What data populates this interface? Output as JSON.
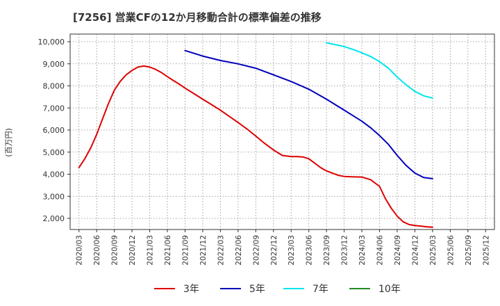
{
  "chart_data": {
    "type": "line",
    "title": "[7256]  営業CFの12か月移動合計の標準偏差の推移",
    "ylabel": "(百万円)",
    "xlabel": "",
    "ylim": [
      1500,
      10000
    ],
    "yticks": [
      "2,000",
      "3,000",
      "4,000",
      "5,000",
      "6,000",
      "7,000",
      "8,000",
      "9,000",
      "10,000"
    ],
    "ytick_values": [
      2000,
      3000,
      4000,
      5000,
      6000,
      7000,
      8000,
      9000,
      10000
    ],
    "categories": [
      "2020/03",
      "2020/06",
      "2020/09",
      "2020/12",
      "2021/03",
      "2021/06",
      "2021/09",
      "2021/12",
      "2022/03",
      "2022/06",
      "2022/09",
      "2022/12",
      "2023/03",
      "2023/06",
      "2023/09",
      "2023/12",
      "2024/03",
      "2024/06",
      "2024/09",
      "2024/12",
      "2025/03",
      "2025/06",
      "2025/09",
      "2025/12"
    ],
    "grid": true,
    "legend_position": "bottom",
    "series": [
      {
        "name": "3年",
        "color": "#dd0000",
        "x": [
          0,
          0.33,
          0.67,
          1,
          1.33,
          1.67,
          2,
          2.33,
          2.67,
          3,
          3.33,
          3.67,
          4,
          4.33,
          4.67,
          5,
          5.33,
          5.67,
          6,
          6.5,
          7,
          7.5,
          8,
          8.5,
          9,
          9.5,
          10,
          10.5,
          11,
          11.5,
          12,
          12.33,
          12.67,
          13,
          13.33,
          13.67,
          14,
          14.33,
          14.67,
          15,
          15.5,
          16,
          16.5,
          17,
          17.33,
          17.67,
          18,
          18.33,
          18.67,
          19,
          19.33,
          19.67,
          20
        ],
        "values": [
          4300,
          4700,
          5200,
          5800,
          6500,
          7200,
          7800,
          8200,
          8500,
          8700,
          8850,
          8900,
          8850,
          8750,
          8600,
          8420,
          8250,
          8080,
          7900,
          7650,
          7400,
          7150,
          6900,
          6620,
          6340,
          6050,
          5730,
          5400,
          5100,
          4850,
          4800,
          4800,
          4780,
          4700,
          4500,
          4300,
          4150,
          4050,
          3950,
          3900,
          3880,
          3870,
          3750,
          3450,
          2900,
          2450,
          2100,
          1850,
          1720,
          1680,
          1650,
          1620,
          1600
        ]
      },
      {
        "name": "5年",
        "color": "#0000bb",
        "x": [
          6,
          7,
          8,
          9,
          10,
          11,
          12,
          13,
          14,
          15,
          16,
          16.5,
          17,
          17.5,
          18,
          18.5,
          19,
          19.5,
          20
        ],
        "values": [
          9600,
          9350,
          9150,
          9000,
          8800,
          8500,
          8200,
          7850,
          7400,
          6900,
          6400,
          6100,
          5750,
          5350,
          4850,
          4400,
          4050,
          3850,
          3800
        ]
      },
      {
        "name": "7年",
        "color": "#00e5ee",
        "x": [
          14,
          14.5,
          15,
          15.5,
          16,
          16.5,
          17,
          17.5,
          18,
          18.5,
          19,
          19.5,
          20
        ],
        "values": [
          9950,
          9870,
          9780,
          9650,
          9500,
          9330,
          9100,
          8800,
          8400,
          8050,
          7750,
          7550,
          7450
        ]
      },
      {
        "name": "10年",
        "color": "#228b22",
        "x": [],
        "values": []
      }
    ]
  }
}
